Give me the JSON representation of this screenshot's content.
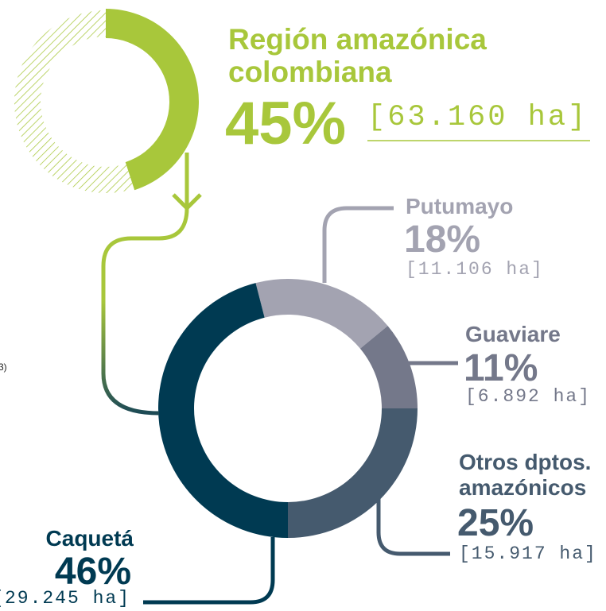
{
  "chart_data": [
    {
      "type": "donut",
      "title": "Región amazónica colombiana",
      "values": [
        45
      ],
      "value_labels": [
        "45%"
      ],
      "area_label": "[63.160 ha]",
      "color": "#a8c73b"
    },
    {
      "type": "donut",
      "categories": [
        "Putumayo",
        "Guaviare",
        "Otros dptos. amazónicos",
        "Caquetá"
      ],
      "values": [
        18,
        11,
        25,
        46
      ],
      "value_labels": [
        "18%",
        "11%",
        "25%",
        "46%"
      ],
      "area_labels": [
        "[11.106 ha]",
        "[6.892 ha]",
        "[15.917 ha]",
        "[29.245 ha]"
      ],
      "colors": [
        "#a3a3b1",
        "#74788a",
        "#455a6e",
        "#003a52"
      ]
    }
  ],
  "note": "3)"
}
